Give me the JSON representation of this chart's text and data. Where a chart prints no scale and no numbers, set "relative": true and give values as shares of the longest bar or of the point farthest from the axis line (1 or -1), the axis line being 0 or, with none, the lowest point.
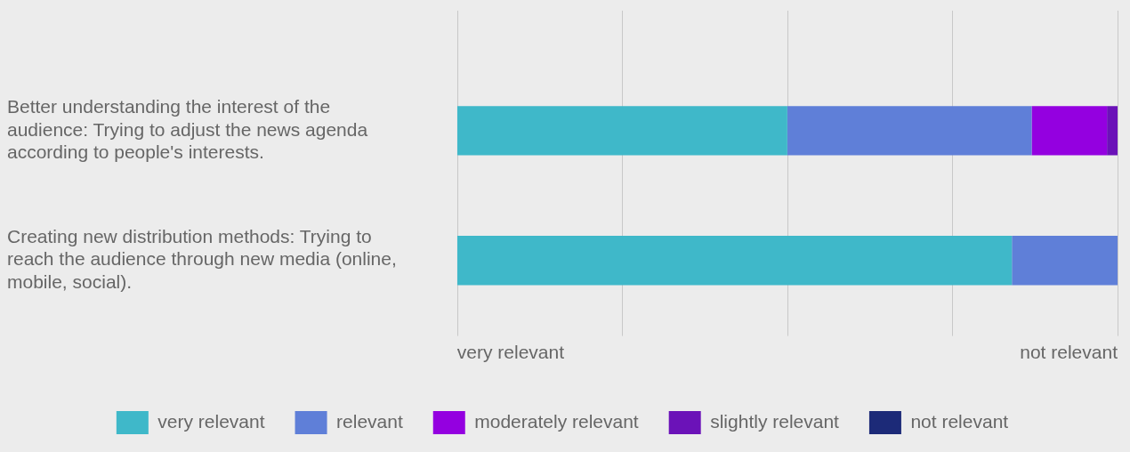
{
  "chart_data": {
    "type": "bar",
    "orientation": "horizontal",
    "stacked": true,
    "relative": true,
    "categories": [
      "Better understanding the interest of the audience: Trying to adjust the news agenda according to people's interests.",
      "Creating new distribution methods: Trying to reach the audience through new media (online, mobile, social)."
    ],
    "series": [
      {
        "name": "very relevant",
        "color": "#3fb8c9",
        "values": [
          0.5,
          0.84
        ]
      },
      {
        "name": "relevant",
        "color": "#5f7fd8",
        "values": [
          0.37,
          0.16
        ]
      },
      {
        "name": "moderately relevant",
        "color": "#9400e0",
        "values": [
          0.114,
          0
        ]
      },
      {
        "name": "slightly relevant",
        "color": "#6b12b8",
        "values": [
          0.016,
          0
        ]
      },
      {
        "name": "not relevant",
        "color": "#1c2a78",
        "values": [
          0,
          0
        ]
      }
    ],
    "annotations": [
      "very relevant",
      "not relevant"
    ],
    "grid": "x",
    "legend": "bottom"
  }
}
